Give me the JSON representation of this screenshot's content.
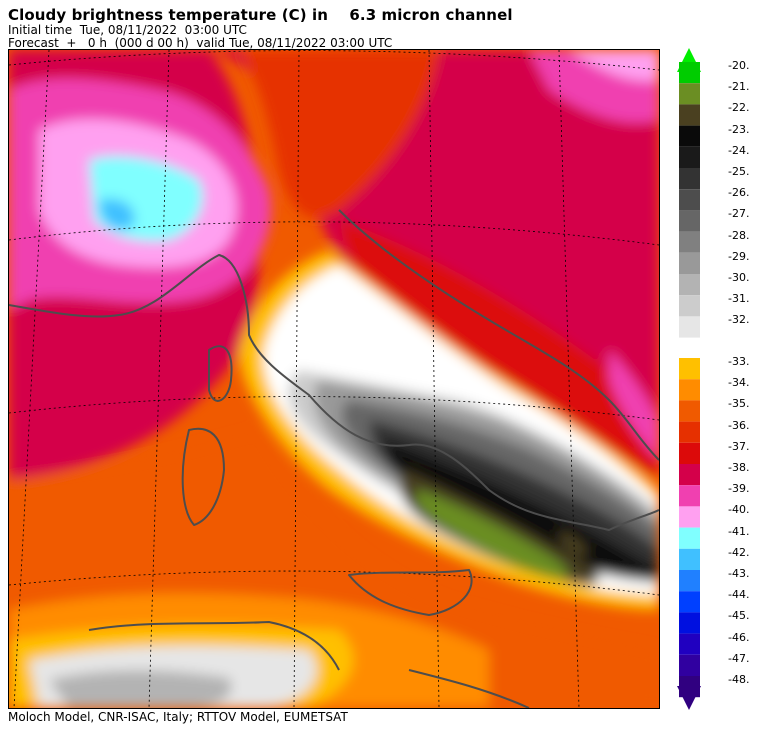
{
  "header": {
    "title": "Cloudy brightness temperature (C) in    6.3 micron channel",
    "initial_time": "Initial time  Tue, 08/11/2022  03:00 UTC",
    "forecast": "Forecast  +   0 h  (000 d 00 h)  valid Tue, 08/11/2022 03:00 UTC"
  },
  "footer": "Moloch Model, CNR-ISAC, Italy; RTTOV Model, EUMETSAT",
  "legend": {
    "upper_block": [
      {
        "label": "-20.",
        "color": "#00cc00"
      },
      {
        "label": "-21.",
        "color": "#6b8e23"
      },
      {
        "label": "-22.",
        "color": "#4a4020"
      },
      {
        "label": "-23.",
        "color": "#0a0a0a"
      },
      {
        "label": "-24.",
        "color": "#1a1a1a"
      },
      {
        "label": "-25.",
        "color": "#333333"
      },
      {
        "label": "-26.",
        "color": "#4d4d4d"
      },
      {
        "label": "-27.",
        "color": "#666666"
      },
      {
        "label": "-28.",
        "color": "#808080"
      },
      {
        "label": "-29.",
        "color": "#999999"
      },
      {
        "label": "-30.",
        "color": "#b3b3b3"
      },
      {
        "label": "-31.",
        "color": "#cccccc"
      },
      {
        "label": "-32.",
        "color": "#e6e6e6"
      }
    ],
    "lower_block": [
      {
        "label": "-33.",
        "color": "#ffc000"
      },
      {
        "label": "-34.",
        "color": "#ff8c00"
      },
      {
        "label": "-35.",
        "color": "#f05a00"
      },
      {
        "label": "-36.",
        "color": "#e63000"
      },
      {
        "label": "-37.",
        "color": "#dc0a0a"
      },
      {
        "label": "-38.",
        "color": "#d4004a"
      },
      {
        "label": "-39.",
        "color": "#f040b0"
      },
      {
        "label": "-40.",
        "color": "#ffa0f0"
      },
      {
        "label": "-41.",
        "color": "#80ffff"
      },
      {
        "label": "-42.",
        "color": "#40c0ff"
      },
      {
        "label": "-43.",
        "color": "#2080ff"
      },
      {
        "label": "-44.",
        "color": "#0040ff"
      },
      {
        "label": "-45.",
        "color": "#0010e0"
      },
      {
        "label": "-46.",
        "color": "#2000c0"
      },
      {
        "label": "-47.",
        "color": "#3000a0"
      },
      {
        "label": "-48.",
        "color": "#300080"
      }
    ],
    "top_arrow_color": "#00ee00",
    "bottom_arrow_color": "#300080"
  }
}
